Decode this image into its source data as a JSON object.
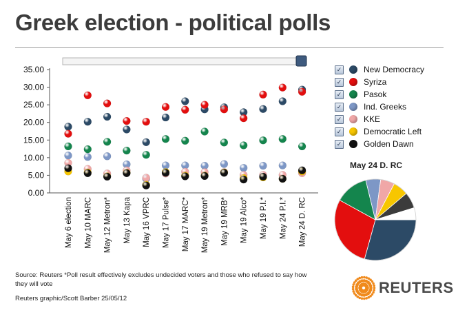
{
  "header": {
    "title": "Greek election - political polls"
  },
  "chart_data": [
    {
      "type": "scatter",
      "title": "Greek election - political polls",
      "categories": [
        "May 6 election",
        "May 10 MARC",
        "May 12 Metron*",
        "May 13 Kapa",
        "May 16 VPRC",
        "May 17 Pulse*",
        "May 17 MARC*",
        "May 19 Metron*",
        "May 19 MRB*",
        "May 19 Alco*",
        "May 19 P.I.*",
        "May 24 P.I.*",
        "May 24 D. RC"
      ],
      "y_ticks": [
        "35.00",
        "30.00",
        "25.00",
        "20.00",
        "15.00",
        "10.00",
        "5.00",
        "0.00"
      ],
      "ylim": [
        0,
        35
      ],
      "xlabel": "",
      "ylabel": "",
      "series": [
        {
          "name": "New Democracy",
          "color": "#2c4a66",
          "values": [
            18.8,
            20.2,
            21.6,
            18.0,
            14.4,
            21.4,
            26.0,
            23.7,
            24.3,
            22.9,
            23.8,
            26.0,
            29.3
          ]
        },
        {
          "name": "Syriza",
          "color": "#e30e0e",
          "values": [
            16.8,
            27.7,
            25.4,
            20.4,
            20.2,
            24.4,
            23.6,
            25.0,
            23.7,
            21.2,
            27.9,
            29.9,
            28.7
          ]
        },
        {
          "name": "Pasok",
          "color": "#14854d",
          "values": [
            13.2,
            12.4,
            14.5,
            12.0,
            10.8,
            15.3,
            14.8,
            17.4,
            14.3,
            13.5,
            14.9,
            15.3,
            13.2
          ]
        },
        {
          "name": "Ind. Greeks",
          "color": "#7d97c6",
          "values": [
            10.6,
            10.2,
            10.4,
            8.1,
            4.0,
            7.8,
            7.8,
            7.7,
            8.2,
            7.1,
            7.7,
            7.8,
            5.9
          ]
        },
        {
          "name": "KKE",
          "color": "#f0a7a7",
          "values": [
            8.5,
            6.8,
            5.5,
            6.4,
            4.3,
            5.5,
            6.0,
            5.9,
            5.9,
            5.1,
            5.1,
            5.1,
            5.6
          ]
        },
        {
          "name": "Democratic Left",
          "color": "#f7c600",
          "values": [
            6.1,
            5.8,
            4.7,
            5.7,
            2.3,
            5.9,
            4.9,
            4.9,
            5.8,
            4.2,
            4.4,
            4.0,
            6.1
          ]
        },
        {
          "name": "Golden Dawn",
          "color": "#111111",
          "values": [
            7.0,
            5.6,
            4.6,
            5.6,
            2.1,
            5.7,
            4.7,
            4.8,
            5.7,
            3.8,
            4.6,
            4.0,
            6.4
          ]
        }
      ]
    },
    {
      "type": "pie",
      "title": "May 24 D. RC",
      "slices": [
        {
          "name": "New Democracy",
          "value": 29.3,
          "color": "#2c4a66"
        },
        {
          "name": "Syriza",
          "value": 28.7,
          "color": "#e30e0e"
        },
        {
          "name": "Pasok",
          "value": 13.2,
          "color": "#14854d"
        },
        {
          "name": "Ind. Greeks",
          "value": 5.9,
          "color": "#7d97c6"
        },
        {
          "name": "KKE",
          "value": 5.6,
          "color": "#f0a7a7"
        },
        {
          "name": "Democratic Left",
          "value": 6.1,
          "color": "#f7c600"
        },
        {
          "name": "Golden Dawn",
          "value": 6.4,
          "color": "#3c3c3c"
        },
        {
          "name": "Other",
          "value": 4.8,
          "color": "#ffffff"
        }
      ]
    }
  ],
  "legend": {
    "checked": true,
    "items": [
      {
        "label": "New Democracy",
        "color": "#2c4a66"
      },
      {
        "label": "Syriza",
        "color": "#e30e0e"
      },
      {
        "label": "Pasok",
        "color": "#14854d"
      },
      {
        "label": "Ind. Greeks",
        "color": "#7d97c6"
      },
      {
        "label": "KKE",
        "color": "#f0a7a7"
      },
      {
        "label": "Democratic Left",
        "color": "#f7c600"
      },
      {
        "label": "Golden Dawn",
        "color": "#111111"
      }
    ]
  },
  "slider": {
    "position": 1.0
  },
  "footer": {
    "source": "Source: Reuters    *Poll result effectively excludes undecided voters and those who refused to say how they will vote",
    "credit": "Reuters graphic/Scott Barber  25/05/12",
    "logo_text": "REUTERS"
  }
}
